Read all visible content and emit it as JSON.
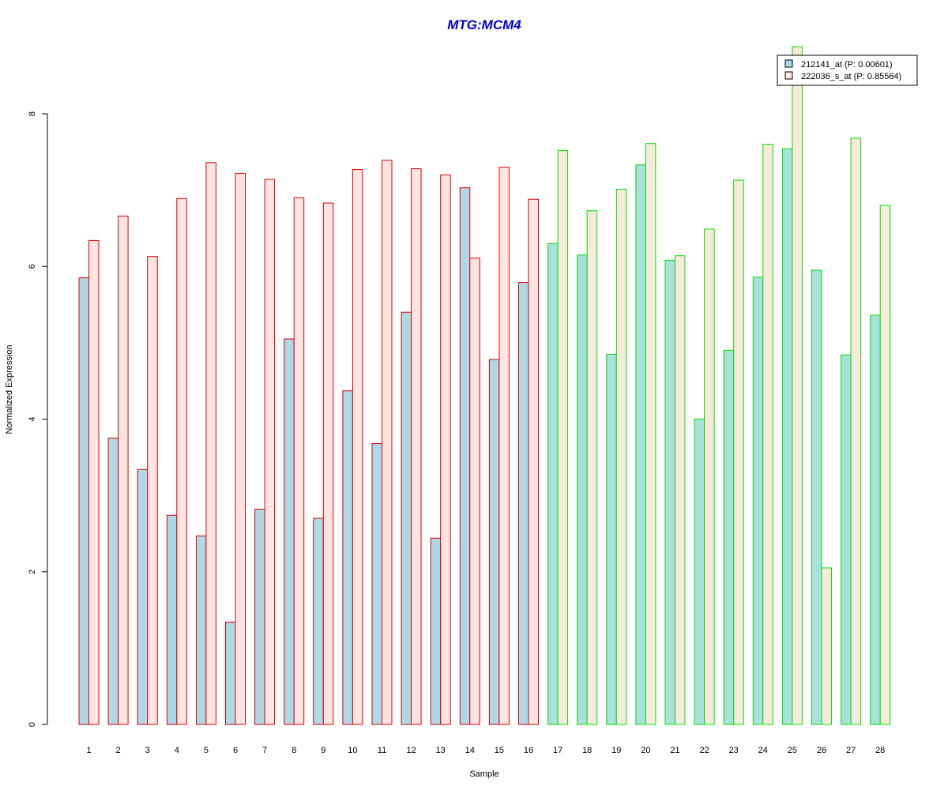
{
  "chart_data": {
    "type": "bar",
    "title": "MTG:MCM4",
    "xlabel": "Sample",
    "ylabel": "Normalized Expression",
    "categories": [
      "1",
      "2",
      "3",
      "4",
      "5",
      "6",
      "7",
      "8",
      "9",
      "10",
      "11",
      "12",
      "13",
      "14",
      "15",
      "16",
      "17",
      "18",
      "19",
      "20",
      "21",
      "22",
      "23",
      "24",
      "25",
      "26",
      "27",
      "28"
    ],
    "yticks": [
      "0",
      "2",
      "4",
      "6",
      "8"
    ],
    "ylim": [
      0,
      8
    ],
    "grid": false,
    "legend_position": "top-right",
    "series": [
      {
        "name": "212141_at (P: 0.00601)",
        "values": [
          5.85,
          3.75,
          3.34,
          2.74,
          2.47,
          1.34,
          2.82,
          5.05,
          2.7,
          4.37,
          3.68,
          5.4,
          2.44,
          7.03,
          4.78,
          5.79,
          6.3,
          6.15,
          4.85,
          7.33,
          6.08,
          4.0,
          4.9,
          5.86,
          7.54,
          5.95,
          4.84,
          5.36
        ]
      },
      {
        "name": "222036_s_at (P: 0.85564)",
        "values": [
          6.34,
          6.66,
          6.13,
          6.89,
          7.36,
          7.22,
          7.14,
          6.9,
          6.83,
          7.27,
          7.39,
          7.28,
          7.2,
          6.11,
          7.3,
          6.88,
          7.52,
          6.73,
          7.01,
          7.61,
          6.14,
          6.49,
          7.13,
          7.6,
          8.88,
          2.05,
          7.68,
          6.8
        ]
      }
    ],
    "group_colors": {
      "first_16_border": "#dd0000",
      "last_12_border": "#00dd00",
      "title_color": "#0000cc",
      "series1_fill_a": "#add8e6",
      "series1_fill_b": "#a8e0dc",
      "series2_fill_a": "#ffe4e1",
      "series2_fill_b": "#f7eadb"
    }
  }
}
